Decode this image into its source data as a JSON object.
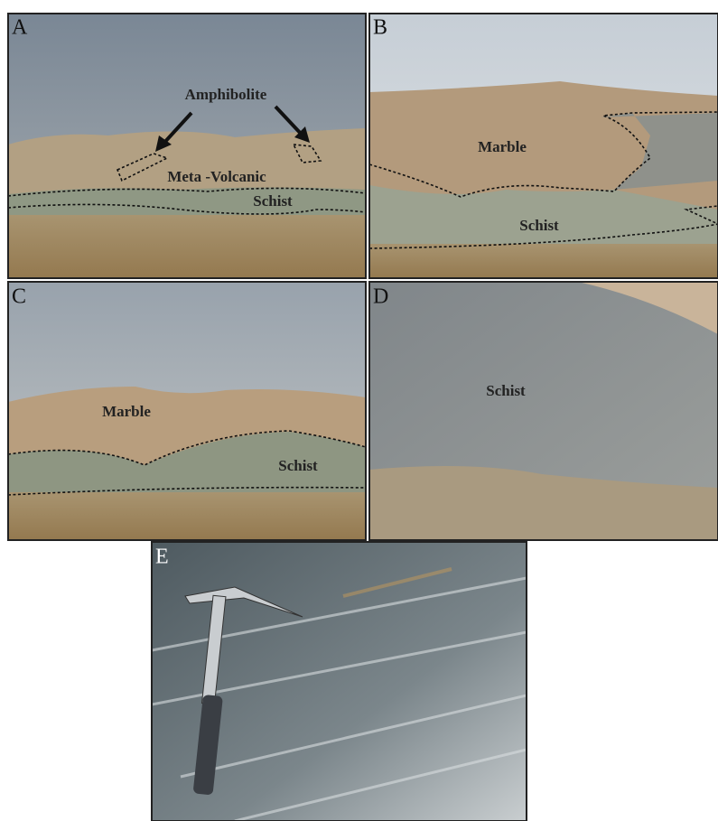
{
  "panels": [
    {
      "letter": "A",
      "labels": [
        "Amphibolite",
        "Meta -Volcanic",
        "Schist"
      ]
    },
    {
      "letter": "B",
      "labels": [
        "Marble",
        "Schist"
      ]
    },
    {
      "letter": "C",
      "labels": [
        "Marble",
        "Schist"
      ]
    },
    {
      "letter": "D",
      "labels": [
        "Schist"
      ]
    },
    {
      "letter": "E",
      "labels": []
    }
  ]
}
